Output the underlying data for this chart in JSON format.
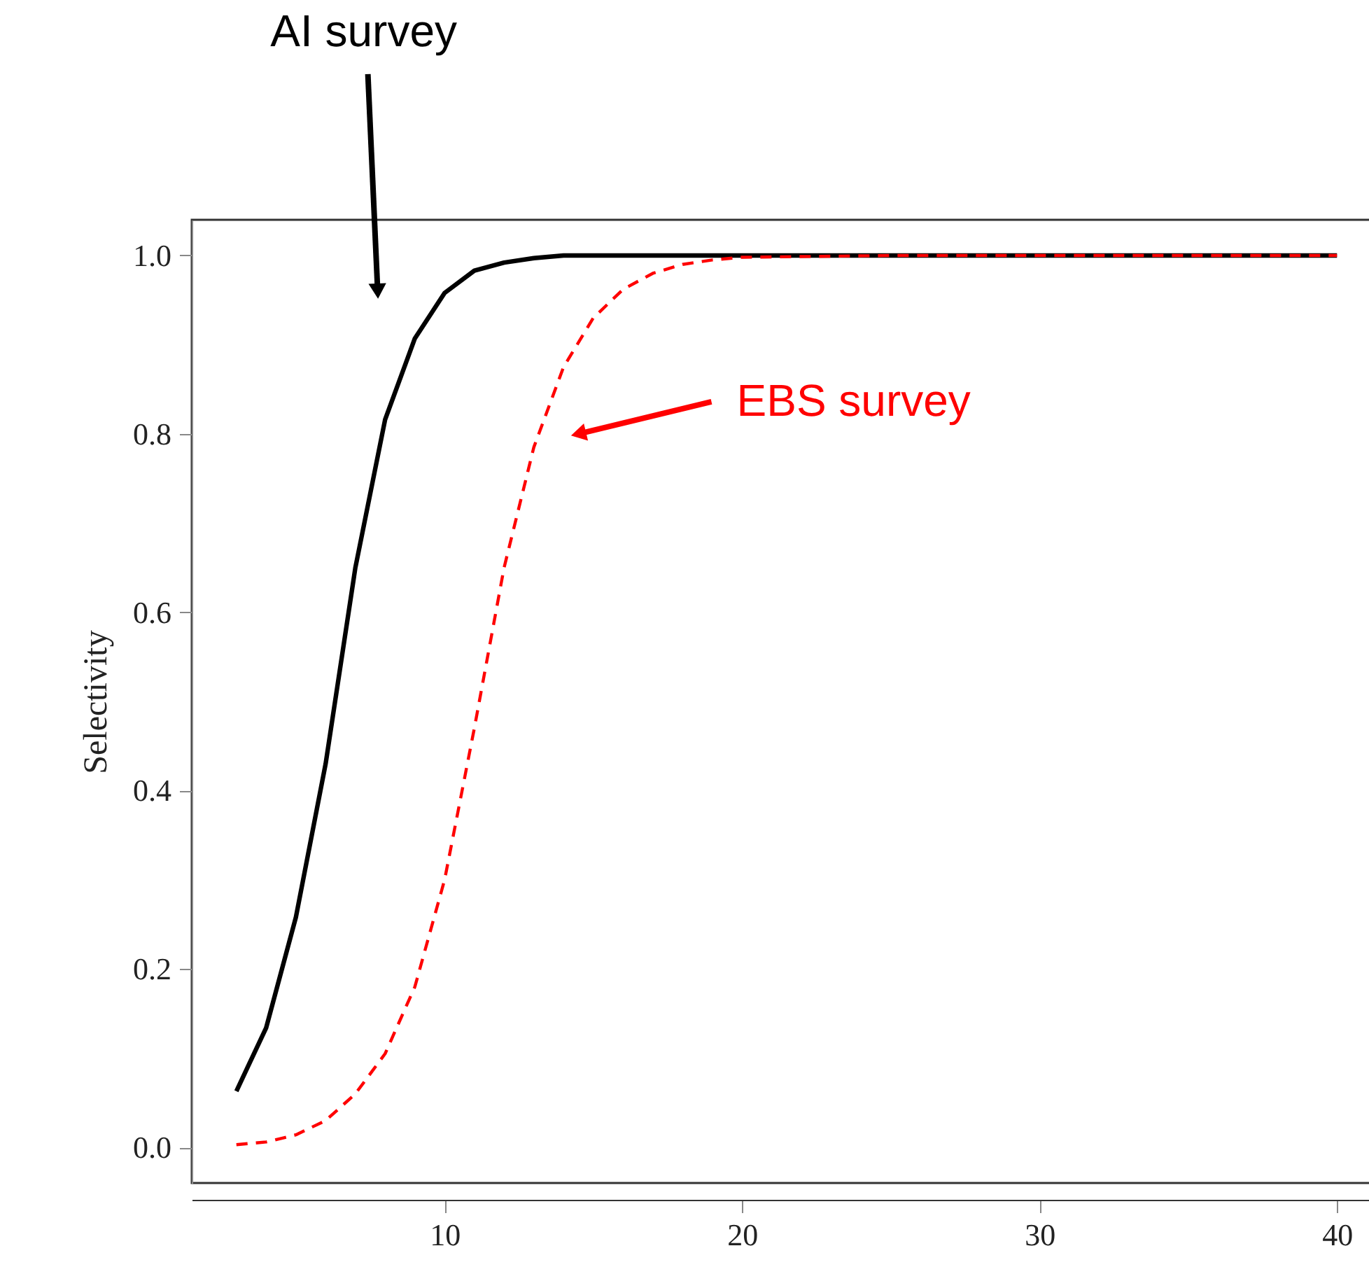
{
  "chart_data": {
    "type": "line",
    "ylabel": "Selectivity",
    "xlim": [
      1.5,
      41.5
    ],
    "ylim": [
      -0.04,
      1.04
    ],
    "xticks": [
      10,
      20,
      30,
      40
    ],
    "yticks": [
      {
        "value": 0,
        "label": "0.0"
      },
      {
        "value": 0.2,
        "label": "0.2"
      },
      {
        "value": 0.4,
        "label": "0.4"
      },
      {
        "value": 0.6,
        "label": "0.6"
      },
      {
        "value": 0.8,
        "label": "0.8"
      },
      {
        "value": 1,
        "label": "1.0"
      }
    ],
    "grid": false,
    "marker": "none",
    "x": [
      3,
      4,
      5,
      6,
      7,
      8,
      9,
      10,
      11,
      12,
      13,
      14,
      15,
      16,
      17,
      18,
      19,
      20,
      25,
      30,
      35,
      40
    ],
    "series": [
      {
        "color": "#000000",
        "line_style": "solid",
        "values": [
          0.063,
          0.134,
          0.258,
          0.43,
          0.65,
          0.816,
          0.907,
          0.958,
          0.983,
          0.992,
          0.997,
          1,
          1,
          1,
          1,
          1,
          1,
          1,
          1,
          1,
          1,
          1
        ]
      },
      {
        "color": "#ff0000",
        "line_style": "dashed",
        "values": [
          0.003,
          0.006,
          0.014,
          0.03,
          0.06,
          0.105,
          0.18,
          0.3,
          0.47,
          0.65,
          0.785,
          0.875,
          0.93,
          0.962,
          0.98,
          0.99,
          0.995,
          0.998,
          1,
          1,
          1,
          1
        ]
      }
    ],
    "annotations": [
      {
        "text": "AI survey",
        "x": 7.75,
        "y": 0.96
      },
      {
        "text": "EBS survey",
        "x": 14.5,
        "y": 0.8
      }
    ]
  }
}
